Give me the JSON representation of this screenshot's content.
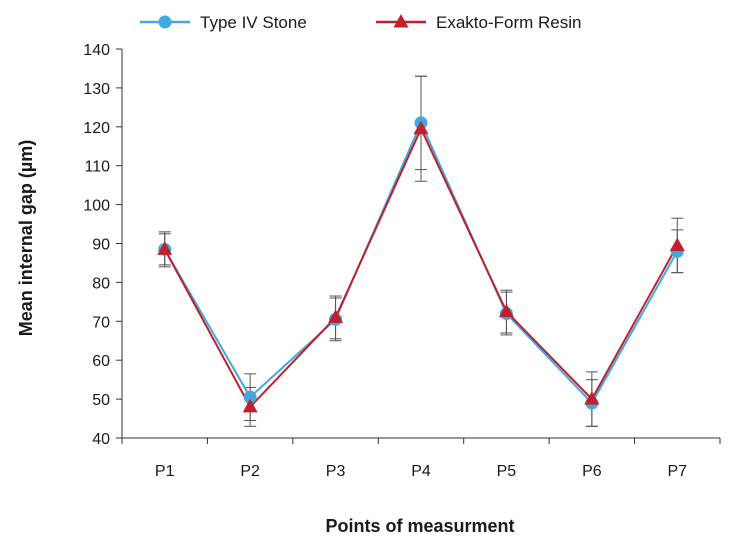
{
  "chart_data": {
    "type": "line",
    "title": "",
    "xlabel": "Points of measurment",
    "ylabel": "Mean internal gap (µm)",
    "categories": [
      "P1",
      "P2",
      "P3",
      "P4",
      "P5",
      "P6",
      "P7"
    ],
    "ylim": [
      40,
      140
    ],
    "yticks": [
      40,
      50,
      60,
      70,
      80,
      90,
      100,
      110,
      120,
      130,
      140
    ],
    "grid": false,
    "legend_position": "top",
    "series": [
      {
        "name": "Type IV Stone",
        "color": "#3fa9e0",
        "marker": "circle",
        "values": [
          88.5,
          50.5,
          70.5,
          121,
          72,
          49,
          88
        ],
        "error": [
          4.5,
          6,
          5.5,
          12,
          5.5,
          6,
          5.5
        ]
      },
      {
        "name": "Exakto-Form Resin",
        "color": "#c0202e",
        "marker": "triangle",
        "values": [
          88.5,
          48,
          71,
          119.5,
          72.5,
          50,
          89.5
        ],
        "error": [
          4,
          5,
          5.5,
          13.5,
          5.5,
          7,
          7
        ]
      }
    ]
  }
}
